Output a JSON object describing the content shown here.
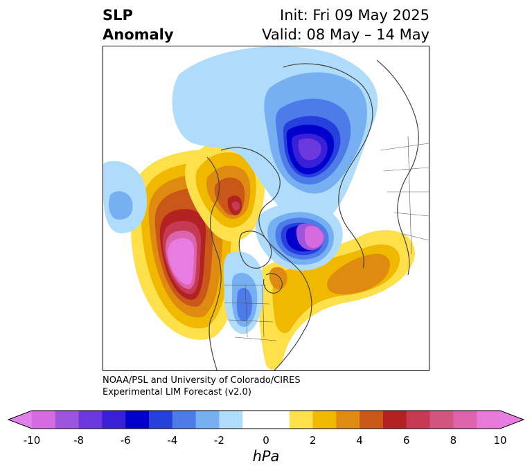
{
  "header": {
    "title_line1": "SLP",
    "title_line2": "Anomaly",
    "init": "Init: Fri 09 May 2025",
    "valid": "Valid: 08 May – 14 May"
  },
  "credit": {
    "line1": "NOAA/PSL and University of Colorado/CIRES",
    "line2": "Experimental LIM Forecast (v2.0)"
  },
  "colorbar": {
    "unit": "hPa",
    "ticks": [
      "-10",
      "-8",
      "-6",
      "-4",
      "-2",
      "0",
      "2",
      "4",
      "6",
      "8",
      "10"
    ],
    "colors": [
      "#d66be0",
      "#9d55de",
      "#6a38dc",
      "#3a1fd8",
      "#0000cd",
      "#2540dc",
      "#4d7be8",
      "#76aff2",
      "#aedcfa",
      "#ffffff",
      "#ffffff",
      "#fde04a",
      "#f1b800",
      "#df8a10",
      "#c85718",
      "#b22222",
      "#c63a54",
      "#d2557f",
      "#dd64ac",
      "#e779d9"
    ],
    "under_color": "#e080ea",
    "over_color": "#e87ce0"
  },
  "anomaly_fields": {
    "negative_colors": [
      "#aedcfa",
      "#76aff2",
      "#4d7be8",
      "#2540dc",
      "#0000cd",
      "#6a38dc",
      "#d66be0"
    ],
    "positive_colors": [
      "#fde04a",
      "#f1b800",
      "#df8a10",
      "#c85718",
      "#b22222",
      "#c63a54",
      "#dd64ac",
      "#e87ce0"
    ]
  }
}
